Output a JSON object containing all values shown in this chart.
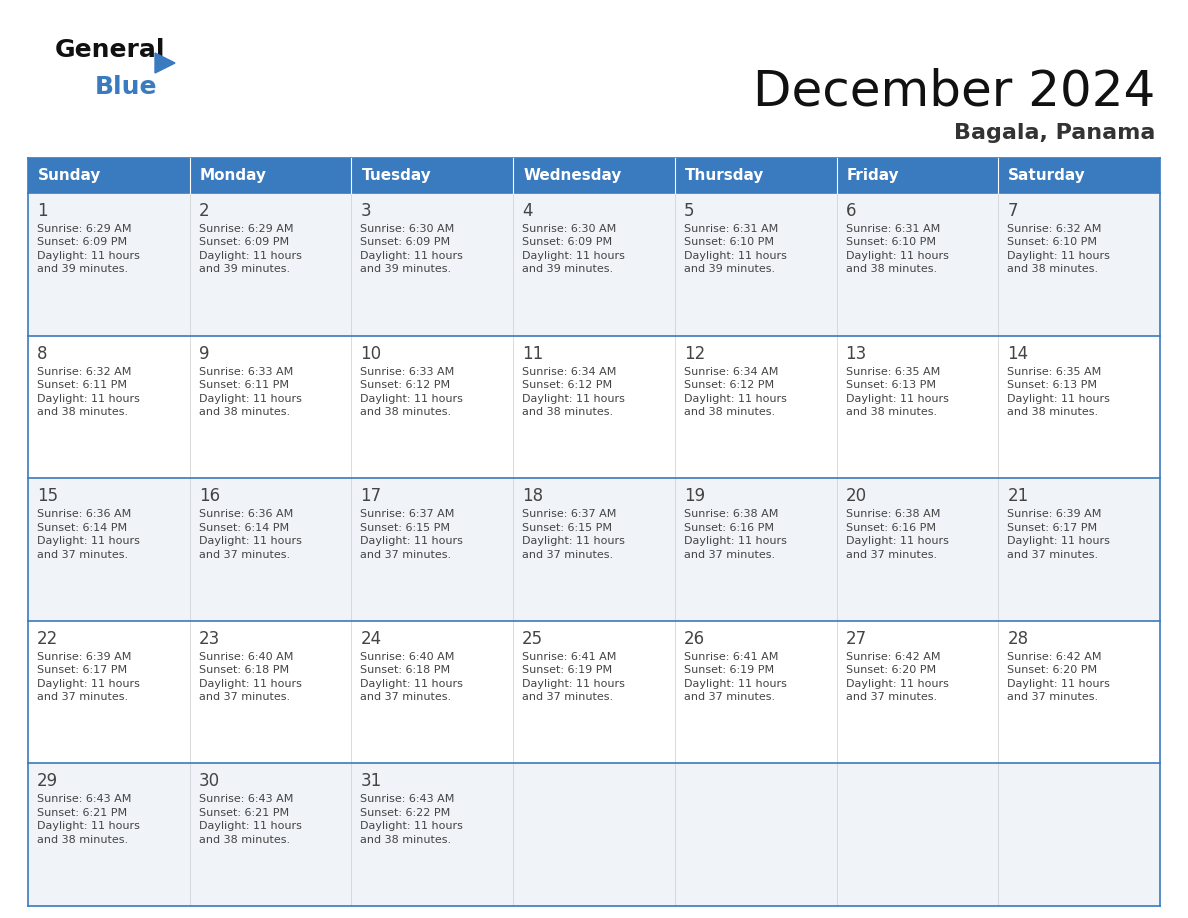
{
  "title": "December 2024",
  "subtitle": "Bagala, Panama",
  "header_color": "#3a7abf",
  "header_text_color": "#ffffff",
  "bg_color": "#ffffff",
  "cell_bg_row0": "#f0f4f8",
  "cell_bg_row1": "#ffffff",
  "border_color": "#3a7abf",
  "day_names": [
    "Sunday",
    "Monday",
    "Tuesday",
    "Wednesday",
    "Thursday",
    "Friday",
    "Saturday"
  ],
  "days": [
    {
      "day": 1,
      "col": 0,
      "row": 0,
      "sunrise": "6:29 AM",
      "sunset": "6:09 PM",
      "daylight_hours": 11,
      "daylight_minutes": 39
    },
    {
      "day": 2,
      "col": 1,
      "row": 0,
      "sunrise": "6:29 AM",
      "sunset": "6:09 PM",
      "daylight_hours": 11,
      "daylight_minutes": 39
    },
    {
      "day": 3,
      "col": 2,
      "row": 0,
      "sunrise": "6:30 AM",
      "sunset": "6:09 PM",
      "daylight_hours": 11,
      "daylight_minutes": 39
    },
    {
      "day": 4,
      "col": 3,
      "row": 0,
      "sunrise": "6:30 AM",
      "sunset": "6:09 PM",
      "daylight_hours": 11,
      "daylight_minutes": 39
    },
    {
      "day": 5,
      "col": 4,
      "row": 0,
      "sunrise": "6:31 AM",
      "sunset": "6:10 PM",
      "daylight_hours": 11,
      "daylight_minutes": 39
    },
    {
      "day": 6,
      "col": 5,
      "row": 0,
      "sunrise": "6:31 AM",
      "sunset": "6:10 PM",
      "daylight_hours": 11,
      "daylight_minutes": 38
    },
    {
      "day": 7,
      "col": 6,
      "row": 0,
      "sunrise": "6:32 AM",
      "sunset": "6:10 PM",
      "daylight_hours": 11,
      "daylight_minutes": 38
    },
    {
      "day": 8,
      "col": 0,
      "row": 1,
      "sunrise": "6:32 AM",
      "sunset": "6:11 PM",
      "daylight_hours": 11,
      "daylight_minutes": 38
    },
    {
      "day": 9,
      "col": 1,
      "row": 1,
      "sunrise": "6:33 AM",
      "sunset": "6:11 PM",
      "daylight_hours": 11,
      "daylight_minutes": 38
    },
    {
      "day": 10,
      "col": 2,
      "row": 1,
      "sunrise": "6:33 AM",
      "sunset": "6:12 PM",
      "daylight_hours": 11,
      "daylight_minutes": 38
    },
    {
      "day": 11,
      "col": 3,
      "row": 1,
      "sunrise": "6:34 AM",
      "sunset": "6:12 PM",
      "daylight_hours": 11,
      "daylight_minutes": 38
    },
    {
      "day": 12,
      "col": 4,
      "row": 1,
      "sunrise": "6:34 AM",
      "sunset": "6:12 PM",
      "daylight_hours": 11,
      "daylight_minutes": 38
    },
    {
      "day": 13,
      "col": 5,
      "row": 1,
      "sunrise": "6:35 AM",
      "sunset": "6:13 PM",
      "daylight_hours": 11,
      "daylight_minutes": 38
    },
    {
      "day": 14,
      "col": 6,
      "row": 1,
      "sunrise": "6:35 AM",
      "sunset": "6:13 PM",
      "daylight_hours": 11,
      "daylight_minutes": 38
    },
    {
      "day": 15,
      "col": 0,
      "row": 2,
      "sunrise": "6:36 AM",
      "sunset": "6:14 PM",
      "daylight_hours": 11,
      "daylight_minutes": 37
    },
    {
      "day": 16,
      "col": 1,
      "row": 2,
      "sunrise": "6:36 AM",
      "sunset": "6:14 PM",
      "daylight_hours": 11,
      "daylight_minutes": 37
    },
    {
      "day": 17,
      "col": 2,
      "row": 2,
      "sunrise": "6:37 AM",
      "sunset": "6:15 PM",
      "daylight_hours": 11,
      "daylight_minutes": 37
    },
    {
      "day": 18,
      "col": 3,
      "row": 2,
      "sunrise": "6:37 AM",
      "sunset": "6:15 PM",
      "daylight_hours": 11,
      "daylight_minutes": 37
    },
    {
      "day": 19,
      "col": 4,
      "row": 2,
      "sunrise": "6:38 AM",
      "sunset": "6:16 PM",
      "daylight_hours": 11,
      "daylight_minutes": 37
    },
    {
      "day": 20,
      "col": 5,
      "row": 2,
      "sunrise": "6:38 AM",
      "sunset": "6:16 PM",
      "daylight_hours": 11,
      "daylight_minutes": 37
    },
    {
      "day": 21,
      "col": 6,
      "row": 2,
      "sunrise": "6:39 AM",
      "sunset": "6:17 PM",
      "daylight_hours": 11,
      "daylight_minutes": 37
    },
    {
      "day": 22,
      "col": 0,
      "row": 3,
      "sunrise": "6:39 AM",
      "sunset": "6:17 PM",
      "daylight_hours": 11,
      "daylight_minutes": 37
    },
    {
      "day": 23,
      "col": 1,
      "row": 3,
      "sunrise": "6:40 AM",
      "sunset": "6:18 PM",
      "daylight_hours": 11,
      "daylight_minutes": 37
    },
    {
      "day": 24,
      "col": 2,
      "row": 3,
      "sunrise": "6:40 AM",
      "sunset": "6:18 PM",
      "daylight_hours": 11,
      "daylight_minutes": 37
    },
    {
      "day": 25,
      "col": 3,
      "row": 3,
      "sunrise": "6:41 AM",
      "sunset": "6:19 PM",
      "daylight_hours": 11,
      "daylight_minutes": 37
    },
    {
      "day": 26,
      "col": 4,
      "row": 3,
      "sunrise": "6:41 AM",
      "sunset": "6:19 PM",
      "daylight_hours": 11,
      "daylight_minutes": 37
    },
    {
      "day": 27,
      "col": 5,
      "row": 3,
      "sunrise": "6:42 AM",
      "sunset": "6:20 PM",
      "daylight_hours": 11,
      "daylight_minutes": 37
    },
    {
      "day": 28,
      "col": 6,
      "row": 3,
      "sunrise": "6:42 AM",
      "sunset": "6:20 PM",
      "daylight_hours": 11,
      "daylight_minutes": 37
    },
    {
      "day": 29,
      "col": 0,
      "row": 4,
      "sunrise": "6:43 AM",
      "sunset": "6:21 PM",
      "daylight_hours": 11,
      "daylight_minutes": 38
    },
    {
      "day": 30,
      "col": 1,
      "row": 4,
      "sunrise": "6:43 AM",
      "sunset": "6:21 PM",
      "daylight_hours": 11,
      "daylight_minutes": 38
    },
    {
      "day": 31,
      "col": 2,
      "row": 4,
      "sunrise": "6:43 AM",
      "sunset": "6:22 PM",
      "daylight_hours": 11,
      "daylight_minutes": 38
    }
  ],
  "num_rows": 5
}
